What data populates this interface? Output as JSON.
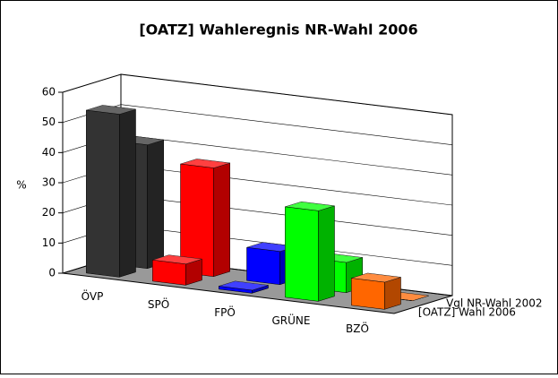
{
  "chart_data": {
    "type": "bar3d",
    "title": "[OATZ] Wahleregnis NR-Wahl 2006",
    "y_label": "%",
    "categories": [
      "ÖVP",
      "SPÖ",
      "FPÖ",
      "GRÜNE",
      "BZÖ"
    ],
    "colors": [
      "#333333",
      "#ff0000",
      "#0000ff",
      "#00ff00",
      "#ff6600"
    ],
    "series": [
      {
        "name": "[OATZ] Wahl 2006",
        "values": [
          54,
          7,
          1,
          30,
          9
        ]
      },
      {
        "name": "Vgl NR-Wahl 2002",
        "values": [
          41,
          36,
          11,
          10,
          0
        ]
      }
    ],
    "ylim": [
      0,
      60
    ],
    "yticks": [
      0,
      10,
      20,
      30,
      40,
      50,
      60
    ],
    "grid": true
  }
}
